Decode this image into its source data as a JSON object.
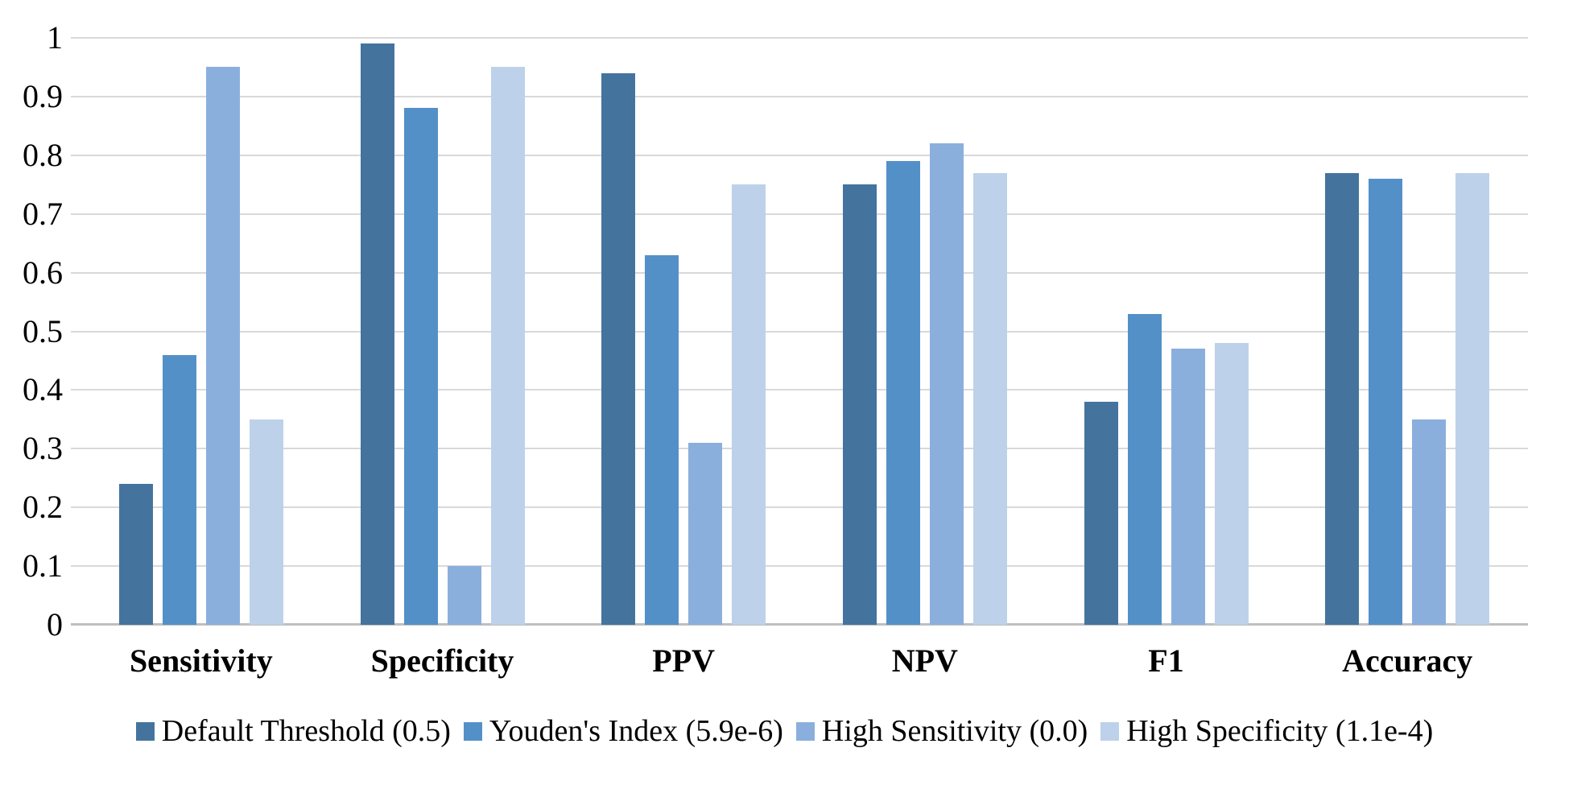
{
  "chart_data": {
    "type": "bar",
    "categories": [
      "Sensitivity",
      "Specificity",
      "PPV",
      "NPV",
      "F1",
      "Accuracy"
    ],
    "series": [
      {
        "name": "Default Threshold (0.5)",
        "color": "#44749E",
        "values": [
          0.24,
          0.99,
          0.94,
          0.75,
          0.38,
          0.77
        ]
      },
      {
        "name": "Youden's Index (5.9e-6)",
        "color": "#5490C8",
        "values": [
          0.46,
          0.88,
          0.63,
          0.79,
          0.53,
          0.76
        ]
      },
      {
        "name": "High Sensitivity (0.0)",
        "color": "#8BAFDD",
        "values": [
          0.95,
          0.1,
          0.31,
          0.82,
          0.47,
          0.35
        ]
      },
      {
        "name": "High Specificity (1.1e-4)",
        "color": "#BDD1EA",
        "values": [
          0.35,
          0.95,
          0.75,
          0.77,
          0.48,
          0.77
        ]
      }
    ],
    "xlabel": "",
    "ylabel": "",
    "ylim": [
      0,
      1
    ],
    "ytick_step": 0.1,
    "ytick_labels": [
      "0",
      "0.1",
      "0.2",
      "0.3",
      "0.4",
      "0.5",
      "0.6",
      "0.7",
      "0.8",
      "0.9",
      "1"
    ],
    "grid": "horizontal",
    "gridline_color": "#D9D9D9",
    "axis_line_color": "#BFBFBF",
    "background_color": "#FFFFFF",
    "text_color": "#000000",
    "legend_position": "bottom"
  }
}
